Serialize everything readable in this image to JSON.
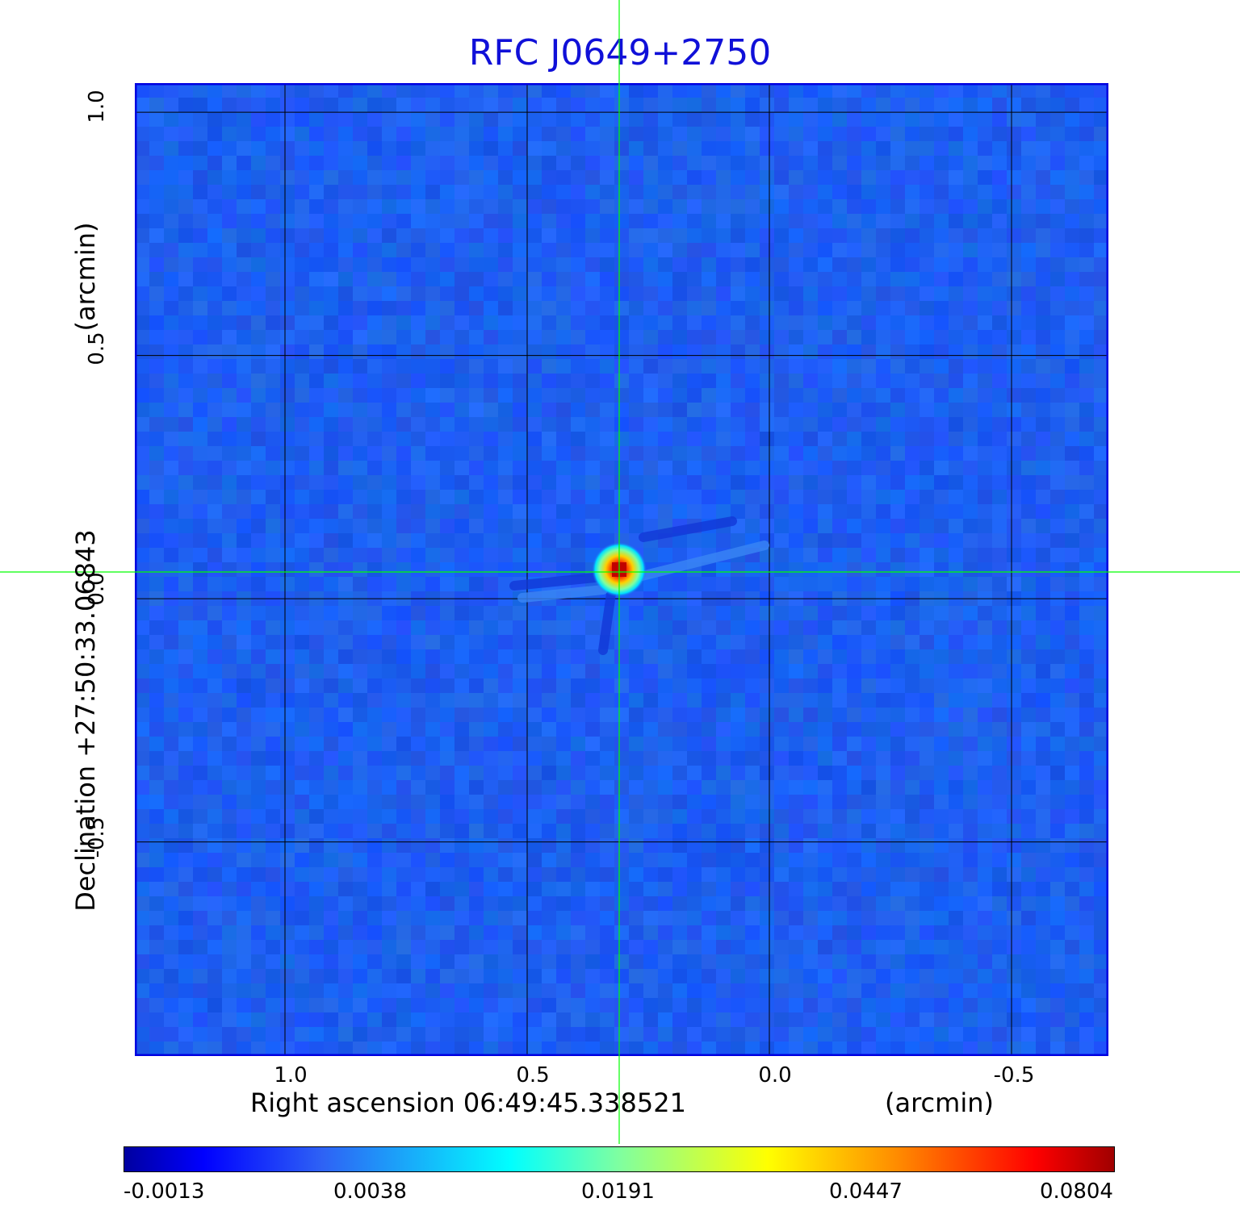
{
  "title": "RFC J0649+2750",
  "x_axis": {
    "label": "Right ascension  06:49:45.338521",
    "unit": "(arcmin)",
    "ticks": [
      "1.0",
      "0.5",
      "0.0",
      "-0.5"
    ],
    "tick_values": [
      1.0,
      0.5,
      0.0,
      -0.5
    ],
    "range": [
      1.31,
      -0.7
    ]
  },
  "y_axis": {
    "label": "Declination  +27:50:33.06843",
    "unit": "(arcmin)",
    "ticks": [
      "1.0",
      "0.5",
      "0.0",
      "-0.5"
    ],
    "tick_values": [
      1.0,
      0.5,
      0.0,
      -0.5
    ],
    "range": [
      -0.94,
      1.06
    ]
  },
  "colorbar": {
    "ticks": [
      "-0.0013",
      "0.0038",
      "0.0191",
      "0.0447",
      "0.0804"
    ]
  },
  "source_peak": {
    "ra_offset_arcmin": 0.31,
    "dec_offset_arcmin": 0.06
  },
  "colors": {
    "title": "#1010d8",
    "background_map": "#1f5bf0",
    "grid": "#000000",
    "crosshair": "#00ff00",
    "frame": "#0000e0"
  }
}
